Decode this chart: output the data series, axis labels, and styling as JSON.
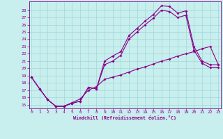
{
  "bg_color": "#c8eeee",
  "grid_color": "#a0d8d8",
  "line_color": "#880088",
  "xlabel": "Windchill (Refroidissement éolien,°C)",
  "xlim_min": -0.3,
  "xlim_max": 23.3,
  "ylim_min": 14.5,
  "ylim_max": 29.2,
  "xticks": [
    0,
    1,
    2,
    3,
    4,
    5,
    6,
    7,
    8,
    9,
    10,
    11,
    12,
    13,
    14,
    15,
    16,
    17,
    18,
    19,
    20,
    21,
    22,
    23
  ],
  "yticks": [
    15,
    16,
    17,
    18,
    19,
    20,
    21,
    22,
    23,
    24,
    25,
    26,
    27,
    28
  ],
  "upper_x": [
    0,
    1,
    2,
    3,
    4,
    5,
    6,
    7,
    8,
    9,
    10,
    11,
    12,
    13,
    14,
    15,
    16,
    17,
    18,
    19,
    20,
    21,
    22,
    23
  ],
  "upper_y": [
    18.8,
    17.2,
    15.7,
    14.8,
    14.8,
    15.2,
    15.5,
    17.4,
    17.2,
    21.0,
    21.7,
    22.3,
    24.5,
    25.5,
    26.5,
    27.4,
    28.6,
    28.5,
    27.6,
    27.9,
    23.0,
    21.0,
    20.5,
    20.5
  ],
  "mid_x": [
    0,
    1,
    2,
    3,
    4,
    5,
    6,
    7,
    8,
    9,
    10,
    11,
    12,
    13,
    14,
    15,
    16,
    17,
    18,
    19,
    20,
    21,
    22,
    23
  ],
  "mid_y": [
    18.8,
    17.2,
    15.7,
    14.8,
    14.8,
    15.2,
    15.5,
    17.4,
    17.2,
    20.5,
    21.0,
    21.8,
    24.0,
    25.0,
    26.0,
    26.9,
    28.0,
    27.8,
    27.0,
    27.3,
    22.5,
    20.7,
    20.1,
    20.1
  ],
  "diag_x": [
    0,
    1,
    2,
    3,
    4,
    5,
    6,
    7,
    8,
    9,
    10,
    11,
    12,
    13,
    14,
    15,
    16,
    17,
    18,
    19,
    20,
    21,
    22,
    23
  ],
  "diag_y": [
    18.8,
    17.2,
    15.7,
    14.8,
    14.8,
    15.3,
    15.8,
    17.0,
    17.5,
    18.5,
    18.8,
    19.1,
    19.5,
    19.9,
    20.2,
    20.6,
    21.0,
    21.3,
    21.7,
    22.0,
    22.3,
    22.7,
    23.0,
    20.5
  ]
}
